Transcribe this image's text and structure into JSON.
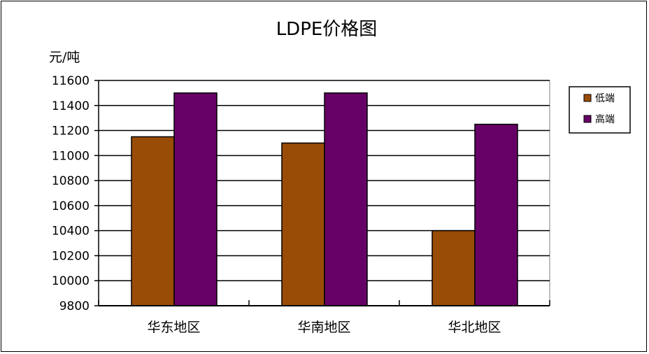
{
  "chart_data": {
    "type": "bar",
    "title": "LDPE价格图",
    "ylabel": "元/吨",
    "xlabel": "",
    "categories": [
      "华东地区",
      "华南地区",
      "华北地区"
    ],
    "series": [
      {
        "name": "低端",
        "values": [
          11150,
          11100,
          10400
        ],
        "color": "#994C06"
      },
      {
        "name": "高端",
        "values": [
          11500,
          11500,
          11250
        ],
        "color": "#660066"
      }
    ],
    "ylim": [
      9800,
      11600
    ],
    "yticks": [
      9800,
      10000,
      10200,
      10400,
      10600,
      10800,
      11000,
      11200,
      11400,
      11600
    ],
    "grid": true,
    "legend": "right",
    "plot_background": "#ffffff"
  }
}
